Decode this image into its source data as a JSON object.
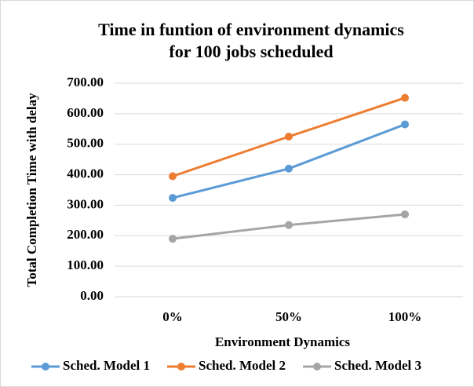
{
  "chart_data": {
    "type": "line",
    "title": [
      "Time in funtion of environment  dynamics",
      "for 100 jobs scheduled"
    ],
    "x_label": "Environment Dynamics",
    "y_label": "Total Completion  Time with delay",
    "categories": [
      "0%",
      "50%",
      "100%"
    ],
    "series": [
      {
        "name": "Sched. Model 1",
        "color": "#5b9bd5",
        "values": [
          324,
          420,
          565
        ]
      },
      {
        "name": "Sched. Model 2",
        "color": "#ed7d31",
        "values": [
          395,
          525,
          652
        ]
      },
      {
        "name": "Sched. Model 3",
        "color": "#a5a5a5",
        "values": [
          190,
          235,
          270
        ]
      }
    ],
    "ylim": [
      0,
      700
    ],
    "yticks": [
      {
        "value": 0,
        "label": "0.00"
      },
      {
        "value": 100,
        "label": "100.00"
      },
      {
        "value": 200,
        "label": "200.00"
      },
      {
        "value": 300,
        "label": "300.00"
      },
      {
        "value": 400,
        "label": "400.00"
      },
      {
        "value": 500,
        "label": "500.00"
      },
      {
        "value": 600,
        "label": "600.00"
      },
      {
        "value": 700,
        "label": "700.00"
      }
    ],
    "grid": true,
    "legend": "bottom"
  }
}
